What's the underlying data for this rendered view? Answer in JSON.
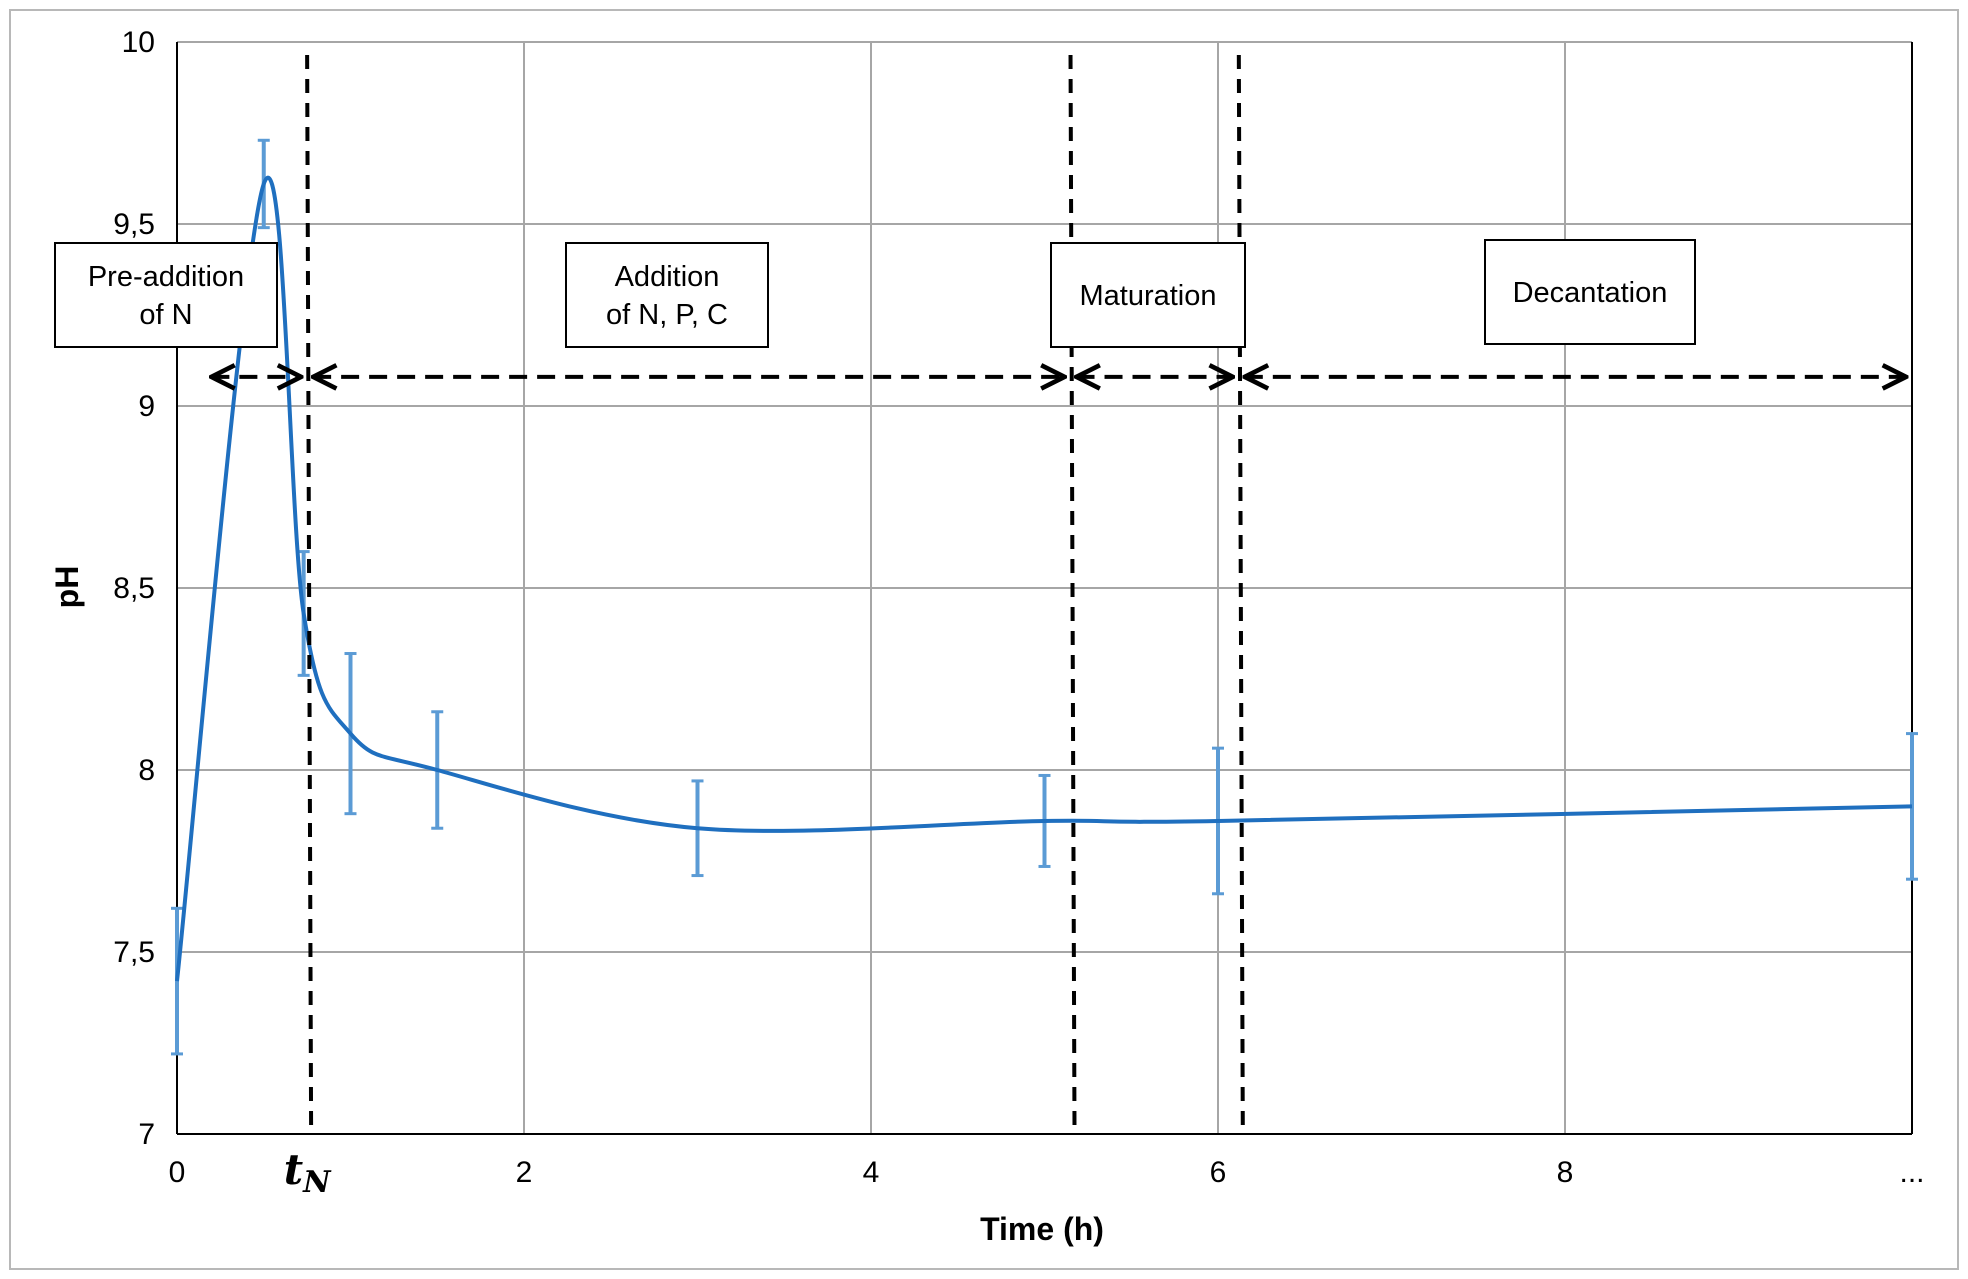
{
  "chart_data": {
    "type": "line",
    "xlabel": "Time (h)",
    "ylabel": "pH",
    "xlim": [
      0,
      10
    ],
    "ylim": [
      7,
      10
    ],
    "x_ticks": [
      {
        "value": 0,
        "label": "0"
      },
      {
        "value": 2,
        "label": "2"
      },
      {
        "value": 4,
        "label": "4"
      },
      {
        "value": 6,
        "label": "6"
      },
      {
        "value": 8,
        "label": "8"
      },
      {
        "value": 10,
        "label": "..."
      }
    ],
    "y_ticks": [
      {
        "value": 7,
        "label": "7"
      },
      {
        "value": 7.5,
        "label": "7,5"
      },
      {
        "value": 8,
        "label": "8"
      },
      {
        "value": 8.5,
        "label": "8,5"
      },
      {
        "value": 9,
        "label": "9"
      },
      {
        "value": 9.5,
        "label": "9,5"
      },
      {
        "value": 10,
        "label": "10"
      }
    ],
    "grid": true,
    "series": [
      {
        "color": "#1f6fbf",
        "error_color": "#5b9bd5",
        "points": [
          {
            "x": 0,
            "y": 7.42,
            "err": 0.2
          },
          {
            "x": 0.5,
            "y": 9.61,
            "err": 0.12
          },
          {
            "x": 0.73,
            "y": 8.43,
            "err": 0.17
          },
          {
            "x": 1.0,
            "y": 8.1,
            "err": 0.22
          },
          {
            "x": 1.5,
            "y": 8.0,
            "err": 0.16
          },
          {
            "x": 3.0,
            "y": 7.84,
            "err": 0.13
          },
          {
            "x": 5.0,
            "y": 7.86,
            "err": 0.125
          },
          {
            "x": 6.0,
            "y": 7.86,
            "err": 0.2
          },
          {
            "x": 10.0,
            "y": 7.9,
            "err": 0.2
          }
        ]
      }
    ],
    "tN_label": {
      "base": "t",
      "sub": "N",
      "x": 0.75
    },
    "phase_boundaries": [
      0.75,
      5.15,
      6.12
    ],
    "phases": [
      {
        "label_lines": [
          "Pre-addition",
          "of N"
        ],
        "x_start": 0.25,
        "x_end": 0.75
      },
      {
        "label_lines": [
          "Addition",
          "of N, P, C"
        ],
        "x_start": 0.75,
        "x_end": 5.15
      },
      {
        "label_lines": [
          "Maturation"
        ],
        "x_start": 5.15,
        "x_end": 6.12
      },
      {
        "label_lines": [
          "Decantation"
        ],
        "x_start": 6.12,
        "x_end": 10.0
      }
    ],
    "arrow_y": 9.08
  }
}
